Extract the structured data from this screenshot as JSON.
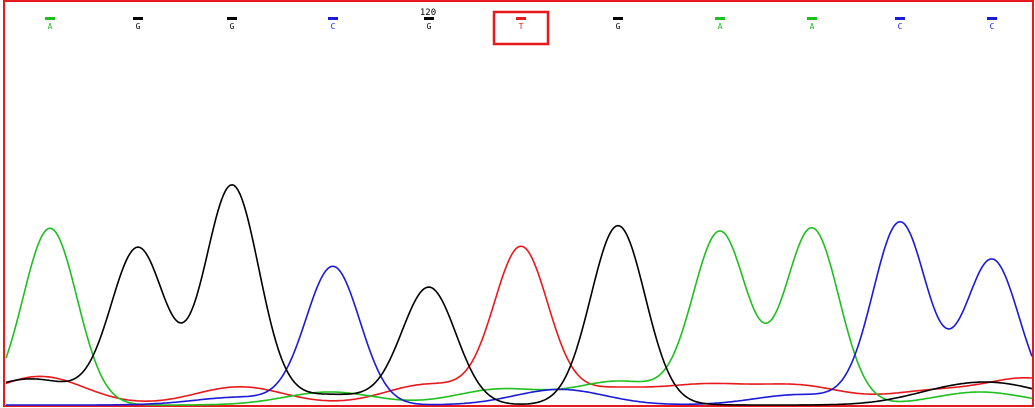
{
  "viewer": {
    "position_label": "120",
    "selected_index": 5,
    "frame_color": "#e8191c",
    "highlight_color": "#e8191c"
  },
  "base_colors": {
    "A": "#1fbf1f",
    "C": "#1a1ad8",
    "G": "#000000",
    "T": "#e8191c"
  },
  "calls": [
    "A",
    "G",
    "G",
    "C",
    "G",
    "T",
    "G",
    "A",
    "A",
    "C",
    "C"
  ],
  "chart_data": {
    "type": "line",
    "title": "",
    "xlabel": "",
    "ylabel": "",
    "peak_heights": [
      0.68,
      0.59,
      0.84,
      0.53,
      0.45,
      0.59,
      0.68,
      0.66,
      0.68,
      0.7,
      0.56
    ],
    "ylim": [
      0,
      1
    ]
  }
}
